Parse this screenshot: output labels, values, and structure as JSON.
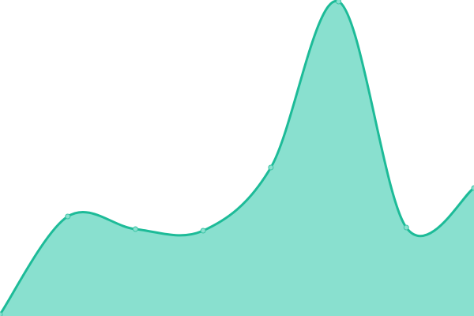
{
  "chart_data": {
    "type": "area",
    "smooth": true,
    "x": [
      0,
      1,
      2,
      3,
      4,
      5,
      6,
      7
    ],
    "values": [
      0.5,
      31.5,
      27.5,
      27,
      47,
      99.5,
      28,
      40.5
    ],
    "ylim": [
      0,
      100
    ],
    "grid": false,
    "axes_visible": false,
    "legend": "none",
    "colors": {
      "fill": "#89e0cf",
      "stroke": "#1dbb98",
      "marker_fill": "#89e0cf",
      "marker_stroke": "#3cc4a5"
    }
  }
}
